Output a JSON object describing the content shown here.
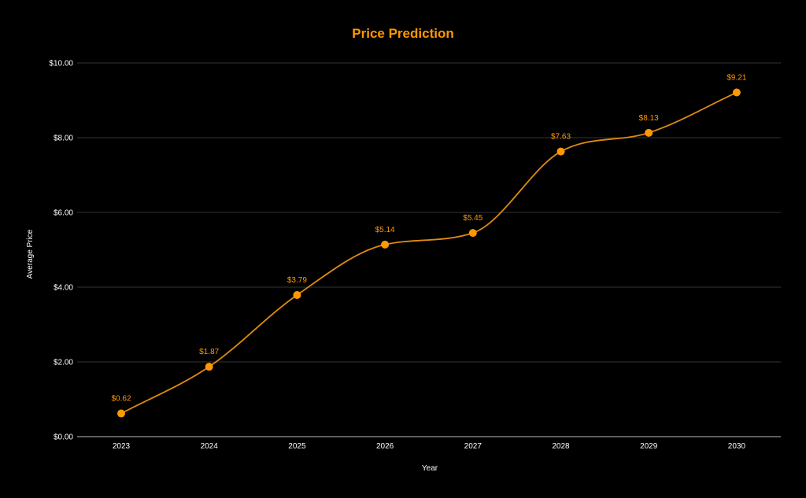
{
  "colors": {
    "background": "#000000",
    "accent": "#FF9800",
    "line": "#E08A10",
    "grid": "#333333",
    "axis": "#BBBBBB",
    "text": "#FFFFFF"
  },
  "chart_data": {
    "type": "line",
    "title": "Price Prediction",
    "xlabel": "Year",
    "ylabel": "Average Price",
    "categories": [
      "2023",
      "2024",
      "2025",
      "2026",
      "2027",
      "2028",
      "2029",
      "2030"
    ],
    "values": [
      0.62,
      1.87,
      3.79,
      5.14,
      5.45,
      7.63,
      8.13,
      9.21
    ],
    "data_labels": [
      "$0.62",
      "$1.87",
      "$3.79",
      "$5.14",
      "$5.45",
      "$7.63",
      "$8.13",
      "$9.21"
    ],
    "y_ticks": [
      0,
      2,
      4,
      6,
      8,
      10
    ],
    "y_tick_labels": [
      "$0.00",
      "$2.00",
      "$4.00",
      "$6.00",
      "$8.00",
      "$10.00"
    ],
    "ylim": [
      0,
      10
    ],
    "grid": true,
    "smooth": true,
    "legend": "none"
  }
}
